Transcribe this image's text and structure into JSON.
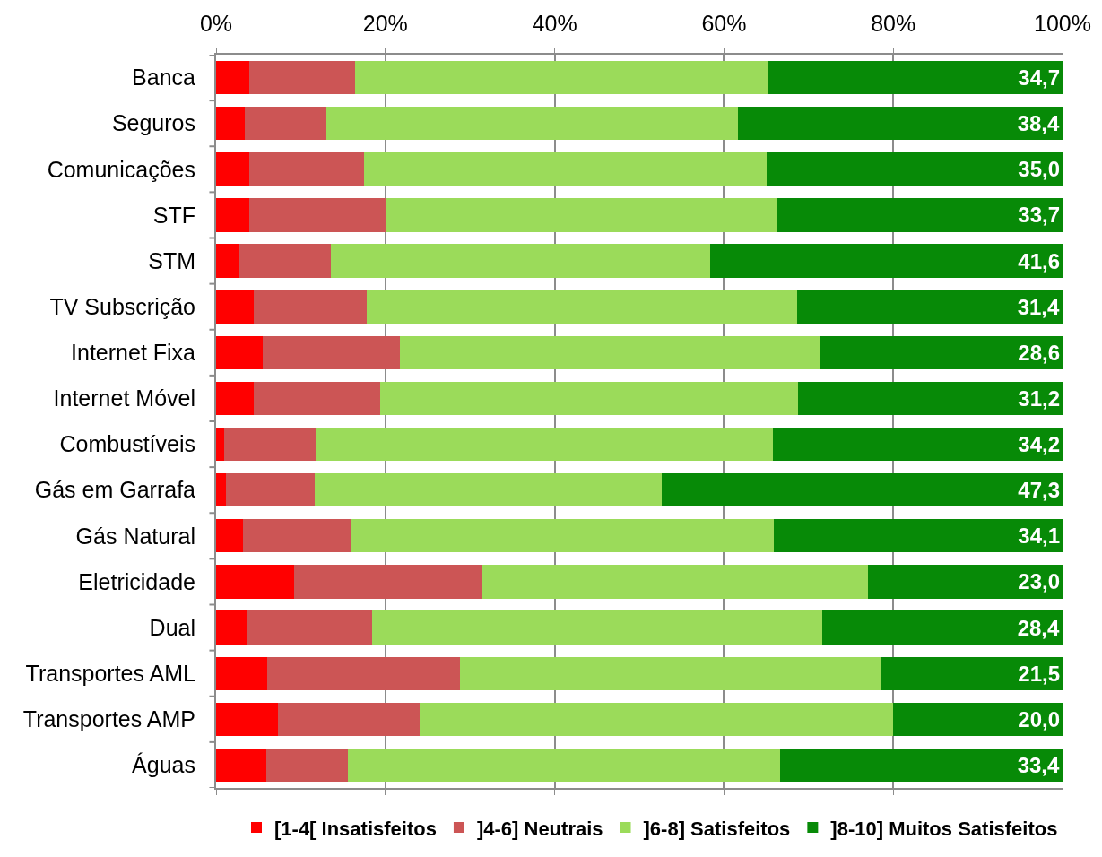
{
  "chart_data": {
    "type": "bar",
    "orientation": "horizontal",
    "stacked": true,
    "categories": [
      "Banca",
      "Seguros",
      "Comunicações",
      "STF",
      "STM",
      "TV Subscrição",
      "Internet Fixa",
      "Internet Móvel",
      "Combustíveis",
      "Gás em Garrafa",
      "Gás Natural",
      "Eletricidade",
      "Dual",
      "Transportes AML",
      "Transportes AMP",
      "Águas"
    ],
    "series": [
      {
        "name": "[1-4[ Insatisfeitos",
        "color": "#ff0000",
        "values": [
          3.9,
          3.4,
          3.9,
          3.9,
          2.6,
          4.5,
          5.5,
          4.5,
          0.9,
          1.2,
          3.2,
          9.2,
          3.6,
          6.0,
          7.3,
          5.9
        ]
      },
      {
        "name": "]4-6] Neutrais",
        "color": "#cc5555",
        "values": [
          12.5,
          9.6,
          13.6,
          16.1,
          11.0,
          13.3,
          16.2,
          14.9,
          10.9,
          10.4,
          12.7,
          22.2,
          14.8,
          22.8,
          16.7,
          9.7
        ]
      },
      {
        "name": "]6-8] Satisfeitos",
        "color": "#9bdb5a",
        "values": [
          48.9,
          48.6,
          47.5,
          46.3,
          44.8,
          50.8,
          49.7,
          49.4,
          54.0,
          41.1,
          50.0,
          45.6,
          53.2,
          49.7,
          56.0,
          51.0
        ]
      },
      {
        "name": "]8-10] Muitos Satisfeitos",
        "color": "#078a07",
        "values": [
          34.7,
          38.4,
          35.0,
          33.7,
          41.6,
          31.4,
          28.6,
          31.2,
          34.2,
          47.3,
          34.1,
          23.0,
          28.4,
          21.5,
          20.0,
          33.4
        ],
        "value_labels": [
          "34,7",
          "38,4",
          "35,0",
          "33,7",
          "41,6",
          "31,4",
          "28,6",
          "31,2",
          "34,2",
          "47,3",
          "34,1",
          "23,0",
          "28,4",
          "21,5",
          "20,0",
          "33,4"
        ]
      }
    ],
    "xlim": [
      0,
      100
    ],
    "xticks": [
      {
        "value": 0,
        "label": "0%"
      },
      {
        "value": 20,
        "label": "20%"
      },
      {
        "value": 40,
        "label": "40%"
      },
      {
        "value": 60,
        "label": "60%"
      },
      {
        "value": 80,
        "label": "80%"
      },
      {
        "value": 100,
        "label": "100%"
      }
    ],
    "grid": "x",
    "legend": "bottom"
  }
}
